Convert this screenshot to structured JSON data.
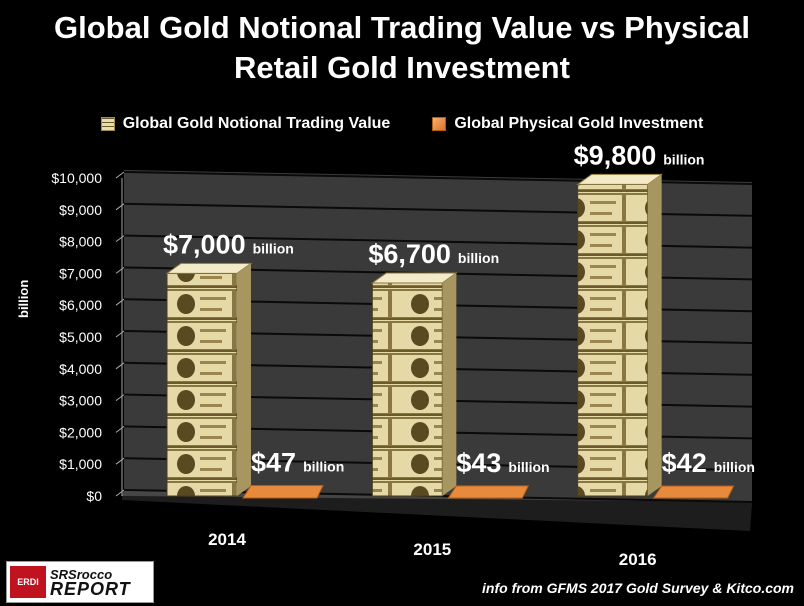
{
  "title": {
    "line1": "Global Gold Notional Trading Value vs Physical",
    "line2": "Retail Gold Investment"
  },
  "legend": [
    {
      "label": "Global Gold Notional Trading Value",
      "icon": "gold-certificate-stack-icon"
    },
    {
      "label": "Global Physical Gold Investment",
      "icon": "orange-square-icon"
    }
  ],
  "footer": {
    "source": "info from GFMS 2017 Gold Survey & Kitco.com",
    "logo_badge": "ERDI",
    "logo_line1": "SRSrocco",
    "logo_line2": "REPORT"
  },
  "chart_data": {
    "type": "bar",
    "title": "Global Gold Notional Trading Value vs Physical Retail Gold Investment",
    "xlabel": "",
    "ylabel": "billion",
    "categories": [
      "2014",
      "2015",
      "2016"
    ],
    "series": [
      {
        "name": "Global Gold Notional Trading Value",
        "values": [
          7000,
          6700,
          9800
        ],
        "labels": [
          "$7,000",
          "$6,700",
          "$9,800"
        ]
      },
      {
        "name": "Global Physical Gold Investment",
        "values": [
          47,
          43,
          42
        ],
        "labels": [
          "$47",
          "$43",
          "$42"
        ]
      }
    ],
    "label_unit": "billion",
    "ylim": [
      0,
      10000
    ],
    "yticks": [
      0,
      1000,
      2000,
      3000,
      4000,
      5000,
      6000,
      7000,
      8000,
      9000,
      10000
    ],
    "ytick_labels": [
      "$0",
      "$1,000",
      "$2,000",
      "$3,000",
      "$4,000",
      "$5,000",
      "$6,000",
      "$7,000",
      "$8,000",
      "$9,000",
      "$10,000"
    ],
    "grid": true,
    "legend_position": "top"
  },
  "colors": {
    "background": "#000000",
    "wall": "#3a3a3a",
    "gridline": "#0a0a0a",
    "notional_face": "#e6d9a8",
    "notional_dark": "#6b5a2a",
    "physical": "#e88a3c",
    "text": "#ffffff"
  }
}
